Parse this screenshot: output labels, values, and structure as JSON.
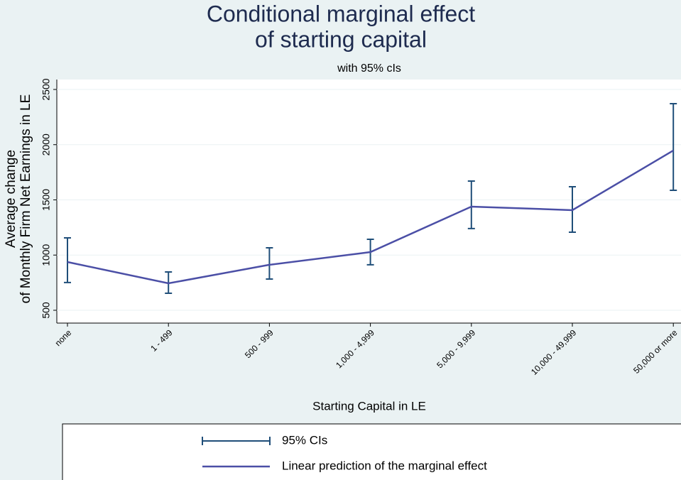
{
  "chart_data": {
    "type": "line",
    "title": [
      "Conditional marginal effect",
      "of starting capital"
    ],
    "subtitle": "with 95% cIs",
    "x_label": "Starting Capital in LE",
    "y_label": [
      "Average change",
      "of Monthly Firm Net Earnings in LE"
    ],
    "categories": [
      "none",
      "1 - 499",
      "500 - 999",
      "1,000 - 4,999",
      "5,000 - 9,999",
      "10,000 - 49,999",
      "50,000 or more"
    ],
    "series": [
      {
        "name": "Linear prediction of the marginal effect",
        "color": "#4b4fa6",
        "values": [
          937,
          744,
          912,
          1027,
          1439,
          1407,
          1947
        ]
      }
    ],
    "error_bars": {
      "name": "95% CIs",
      "color": "#1f4e79",
      "lower": [
        751,
        654,
        783,
        912,
        1240,
        1207,
        1587
      ],
      "upper": [
        1156,
        847,
        1066,
        1143,
        1670,
        1619,
        2371
      ]
    },
    "ylim": [
      384,
      2590
    ],
    "yticks": [
      500,
      1000,
      1500,
      2000,
      2500
    ],
    "grid": true
  }
}
